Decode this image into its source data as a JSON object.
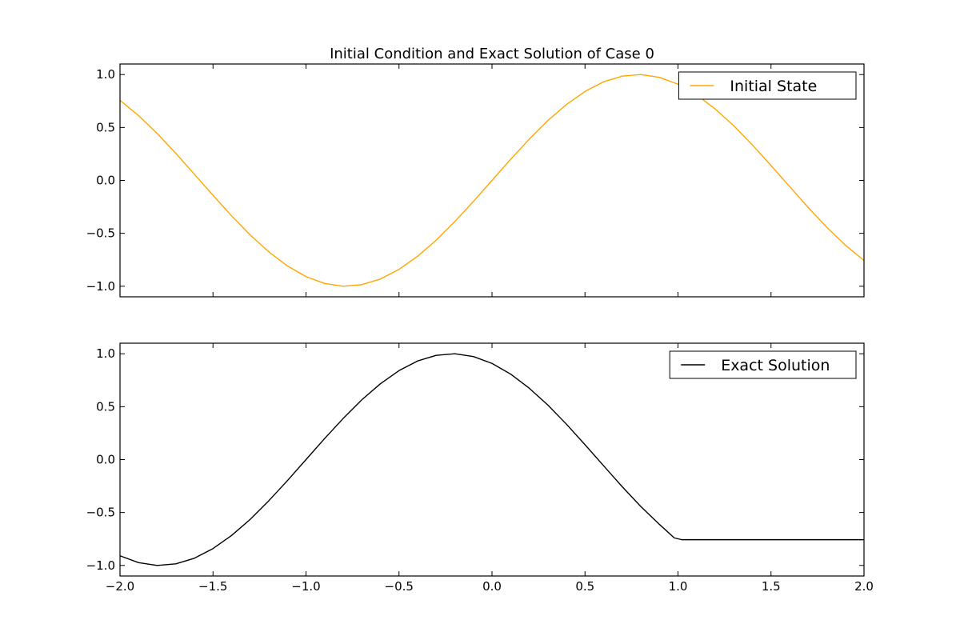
{
  "figure": {
    "title": "Initial Condition and Exact Solution of Case 0",
    "background": "#ffffff"
  },
  "chart_data": [
    {
      "type": "line",
      "title": "Initial Condition and Exact Solution of Case 0",
      "xlabel": "",
      "ylabel": "",
      "xlim": [
        -2.0,
        2.0
      ],
      "ylim": [
        -1.1,
        1.1
      ],
      "xticks": [
        -2.0,
        -1.5,
        -1.0,
        -0.5,
        0.0,
        0.5,
        1.0,
        1.5,
        2.0
      ],
      "xtick_labels_visible": false,
      "yticks": [
        -1.0,
        -0.5,
        0.0,
        0.5,
        1.0
      ],
      "ytick_labels": [
        "−1.0",
        "−0.5",
        "0.0",
        "0.5",
        "1.0"
      ],
      "grid": false,
      "legend_position": "top-right",
      "series": [
        {
          "name": "Initial State",
          "color": "#ffa500",
          "x": [
            -2.0,
            -1.9,
            -1.8,
            -1.7,
            -1.6,
            -1.5,
            -1.4,
            -1.3,
            -1.2,
            -1.1,
            -1.0,
            -0.9,
            -0.8,
            -0.7,
            -0.6,
            -0.5,
            -0.4,
            -0.3,
            -0.2,
            -0.1,
            0.0,
            0.1,
            0.2,
            0.3,
            0.4,
            0.5,
            0.6,
            0.7,
            0.8,
            0.9,
            1.0,
            1.1,
            1.2,
            1.3,
            1.4,
            1.5,
            1.6,
            1.7,
            1.8,
            1.9,
            2.0
          ],
          "y": [
            0.757,
            0.612,
            0.443,
            0.256,
            0.058,
            -0.141,
            -0.335,
            -0.516,
            -0.675,
            -0.808,
            -0.909,
            -0.974,
            -1.0,
            -0.985,
            -0.932,
            -0.841,
            -0.717,
            -0.565,
            -0.389,
            -0.199,
            0.0,
            0.199,
            0.389,
            0.565,
            0.717,
            0.841,
            0.932,
            0.985,
            1.0,
            0.974,
            0.909,
            0.808,
            0.675,
            0.516,
            0.335,
            0.141,
            -0.058,
            -0.256,
            -0.443,
            -0.612,
            -0.757
          ]
        }
      ]
    },
    {
      "type": "line",
      "title": "",
      "xlabel": "",
      "ylabel": "",
      "xlim": [
        -2.0,
        2.0
      ],
      "ylim": [
        -1.1,
        1.1
      ],
      "xticks": [
        -2.0,
        -1.5,
        -1.0,
        -0.5,
        0.0,
        0.5,
        1.0,
        1.5,
        2.0
      ],
      "xtick_labels": [
        "−2.0",
        "−1.5",
        "−1.0",
        "−0.5",
        "0.0",
        "0.5",
        "1.0",
        "1.5",
        "2.0"
      ],
      "yticks": [
        -1.0,
        -0.5,
        0.0,
        0.5,
        1.0
      ],
      "ytick_labels": [
        "−1.0",
        "−0.5",
        "0.0",
        "0.5",
        "1.0"
      ],
      "grid": false,
      "legend_position": "top-right",
      "series": [
        {
          "name": "Exact Solution",
          "color": "#000000",
          "x": [
            -2.0,
            -1.9,
            -1.8,
            -1.7,
            -1.6,
            -1.5,
            -1.4,
            -1.3,
            -1.2,
            -1.1,
            -1.0,
            -0.9,
            -0.8,
            -0.7,
            -0.6,
            -0.5,
            -0.4,
            -0.3,
            -0.2,
            -0.1,
            0.0,
            0.1,
            0.2,
            0.3,
            0.4,
            0.5,
            0.6,
            0.7,
            0.8,
            0.9,
            0.98,
            1.02,
            1.2,
            1.4,
            1.6,
            1.8,
            2.0
          ],
          "y": [
            -0.909,
            -0.974,
            -1.0,
            -0.985,
            -0.932,
            -0.841,
            -0.717,
            -0.565,
            -0.389,
            -0.199,
            0.0,
            0.199,
            0.389,
            0.565,
            0.717,
            0.841,
            0.932,
            0.985,
            1.0,
            0.974,
            0.909,
            0.808,
            0.675,
            0.516,
            0.335,
            0.141,
            -0.058,
            -0.256,
            -0.443,
            -0.612,
            -0.74,
            -0.757,
            -0.757,
            -0.757,
            -0.757,
            -0.757,
            -0.757
          ]
        }
      ]
    }
  ]
}
